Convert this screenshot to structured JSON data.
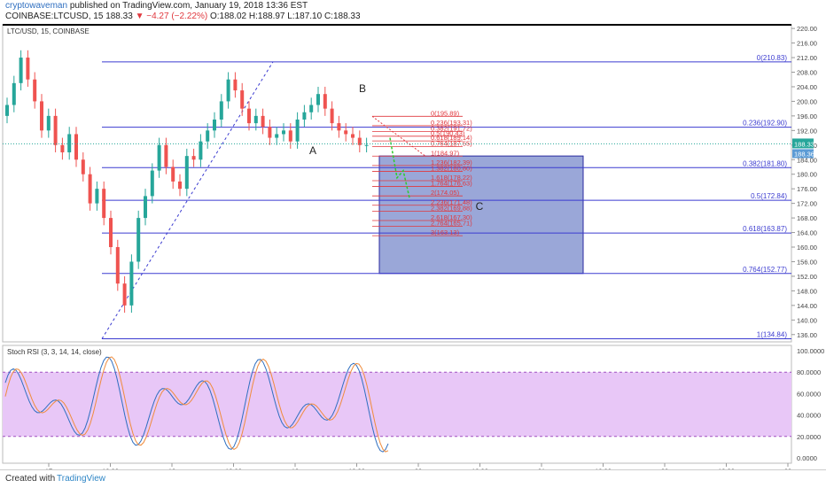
{
  "header": {
    "author": "cryptowaveman",
    "published": "published on TradingView.com, January 19, 2018 13:36 EST",
    "symbol": "COINBASE:LTCUSD, 15",
    "last": "188.33",
    "change": "▼ −4.27 (−2.22%)",
    "ohlc": "O:188.02 H:188.97 L:187.10 C:188.33"
  },
  "chart_title": "LTC/USD, 15, COINBASE",
  "rsi_title": "Stoch RSI (3, 3, 14, 14, close)",
  "footer": {
    "created_with": "Created with",
    "brand": "TradingView"
  },
  "colors": {
    "blue_fib": "#3b3bd0",
    "red_fib": "#e0383e",
    "box": "#6f82c7",
    "rsi_band": "#e8c7f7",
    "up": "#26a69a",
    "down": "#ef5350"
  },
  "chart_data": [
    {
      "type": "candlestick",
      "title": "LTC/USD, 15, COINBASE",
      "ylim": [
        134,
        221
      ],
      "y_ticks": [
        136,
        140,
        144,
        148,
        152,
        156,
        160,
        164,
        168,
        172,
        176,
        180,
        184,
        188,
        192,
        196,
        200,
        204,
        208,
        212,
        216,
        220
      ],
      "y_tick_labels": [
        "136.00",
        "140.00",
        "144.00",
        "148.00",
        "152.00",
        "156.00",
        "160.00",
        "164.00",
        "168.00",
        "172.00",
        "176.00",
        "180.00",
        "184.00",
        "188.00",
        "192.00",
        "196.00",
        "200.00",
        "204.00",
        "208.00",
        "212.00",
        "216.00",
        "220.00"
      ],
      "x_tick_labels": [
        "17",
        "12:00",
        "18",
        "12:00",
        "19",
        "12:00",
        "20",
        "12:00",
        "21",
        "12:00",
        "22",
        "12:00",
        "23"
      ],
      "last_price": "188.33",
      "last_price_2": "188.36",
      "fib_blue": [
        {
          "label": "0(210.83)",
          "value": 210.83
        },
        {
          "label": "0.236(192.90)",
          "value": 192.9
        },
        {
          "label": "0.382(181.80)",
          "value": 181.8
        },
        {
          "label": "0.5(172.84)",
          "value": 172.84
        },
        {
          "label": "0.618(163.87)",
          "value": 163.87
        },
        {
          "label": "0.764(152.77)",
          "value": 152.77
        },
        {
          "label": "1(134.84)",
          "value": 134.84
        }
      ],
      "fib_red": [
        {
          "label": "0(195.89)",
          "value": 195.89
        },
        {
          "label": "0.236(193.31)",
          "value": 193.31
        },
        {
          "label": "0.382(191.72)",
          "value": 191.72
        },
        {
          "label": "0.5(190.43)",
          "value": 190.43
        },
        {
          "label": "0.618(189.14)",
          "value": 189.14
        },
        {
          "label": "0.764(187.55)",
          "value": 187.55
        },
        {
          "label": "1(184.97)",
          "value": 184.97
        },
        {
          "label": "1.236(182.39)",
          "value": 182.39
        },
        {
          "label": "1.382(180.80)",
          "value": 180.8
        },
        {
          "label": "1.618(178.22)",
          "value": 178.22
        },
        {
          "label": "1.764(176.63)",
          "value": 176.63
        },
        {
          "label": "2(174.05)",
          "value": 174.05
        },
        {
          "label": "2.236(171.48)",
          "value": 171.48
        },
        {
          "label": "2.382(169.88)",
          "value": 169.88
        },
        {
          "label": "2.618(167.30)",
          "value": 167.3
        },
        {
          "label": "2.764(165.71)",
          "value": 165.71
        },
        {
          "label": "3(163.13)",
          "value": 163.13
        }
      ],
      "annotations": [
        {
          "text": "A",
          "value": 185.5
        },
        {
          "text": "B",
          "value": 202.5
        },
        {
          "text": "C",
          "value": 170.2
        }
      ],
      "target_box": {
        "top": 185.0,
        "bottom": 152.77
      },
      "price_series": [
        196,
        199,
        205,
        212,
        206,
        200,
        192,
        196,
        188,
        186,
        191,
        184,
        180,
        172,
        176,
        168,
        160,
        150,
        144,
        156,
        168,
        174,
        181,
        188,
        182,
        178,
        176,
        185,
        184,
        189,
        192,
        195,
        200,
        206,
        203,
        198,
        194,
        196,
        193,
        190,
        191,
        192,
        189,
        195,
        197,
        199,
        202,
        198,
        194,
        192,
        191,
        190,
        188,
        188
      ]
    },
    {
      "type": "line",
      "title": "Stoch RSI (3, 3, 14, 14, close)",
      "ylim": [
        -5,
        105
      ],
      "y_ticks": [
        0,
        20,
        40,
        60,
        80,
        100
      ],
      "y_tick_labels": [
        "0.0000",
        "20.0000",
        "40.0000",
        "60.0000",
        "80.0000",
        "100.0000"
      ],
      "bands": [
        20,
        80
      ]
    }
  ]
}
